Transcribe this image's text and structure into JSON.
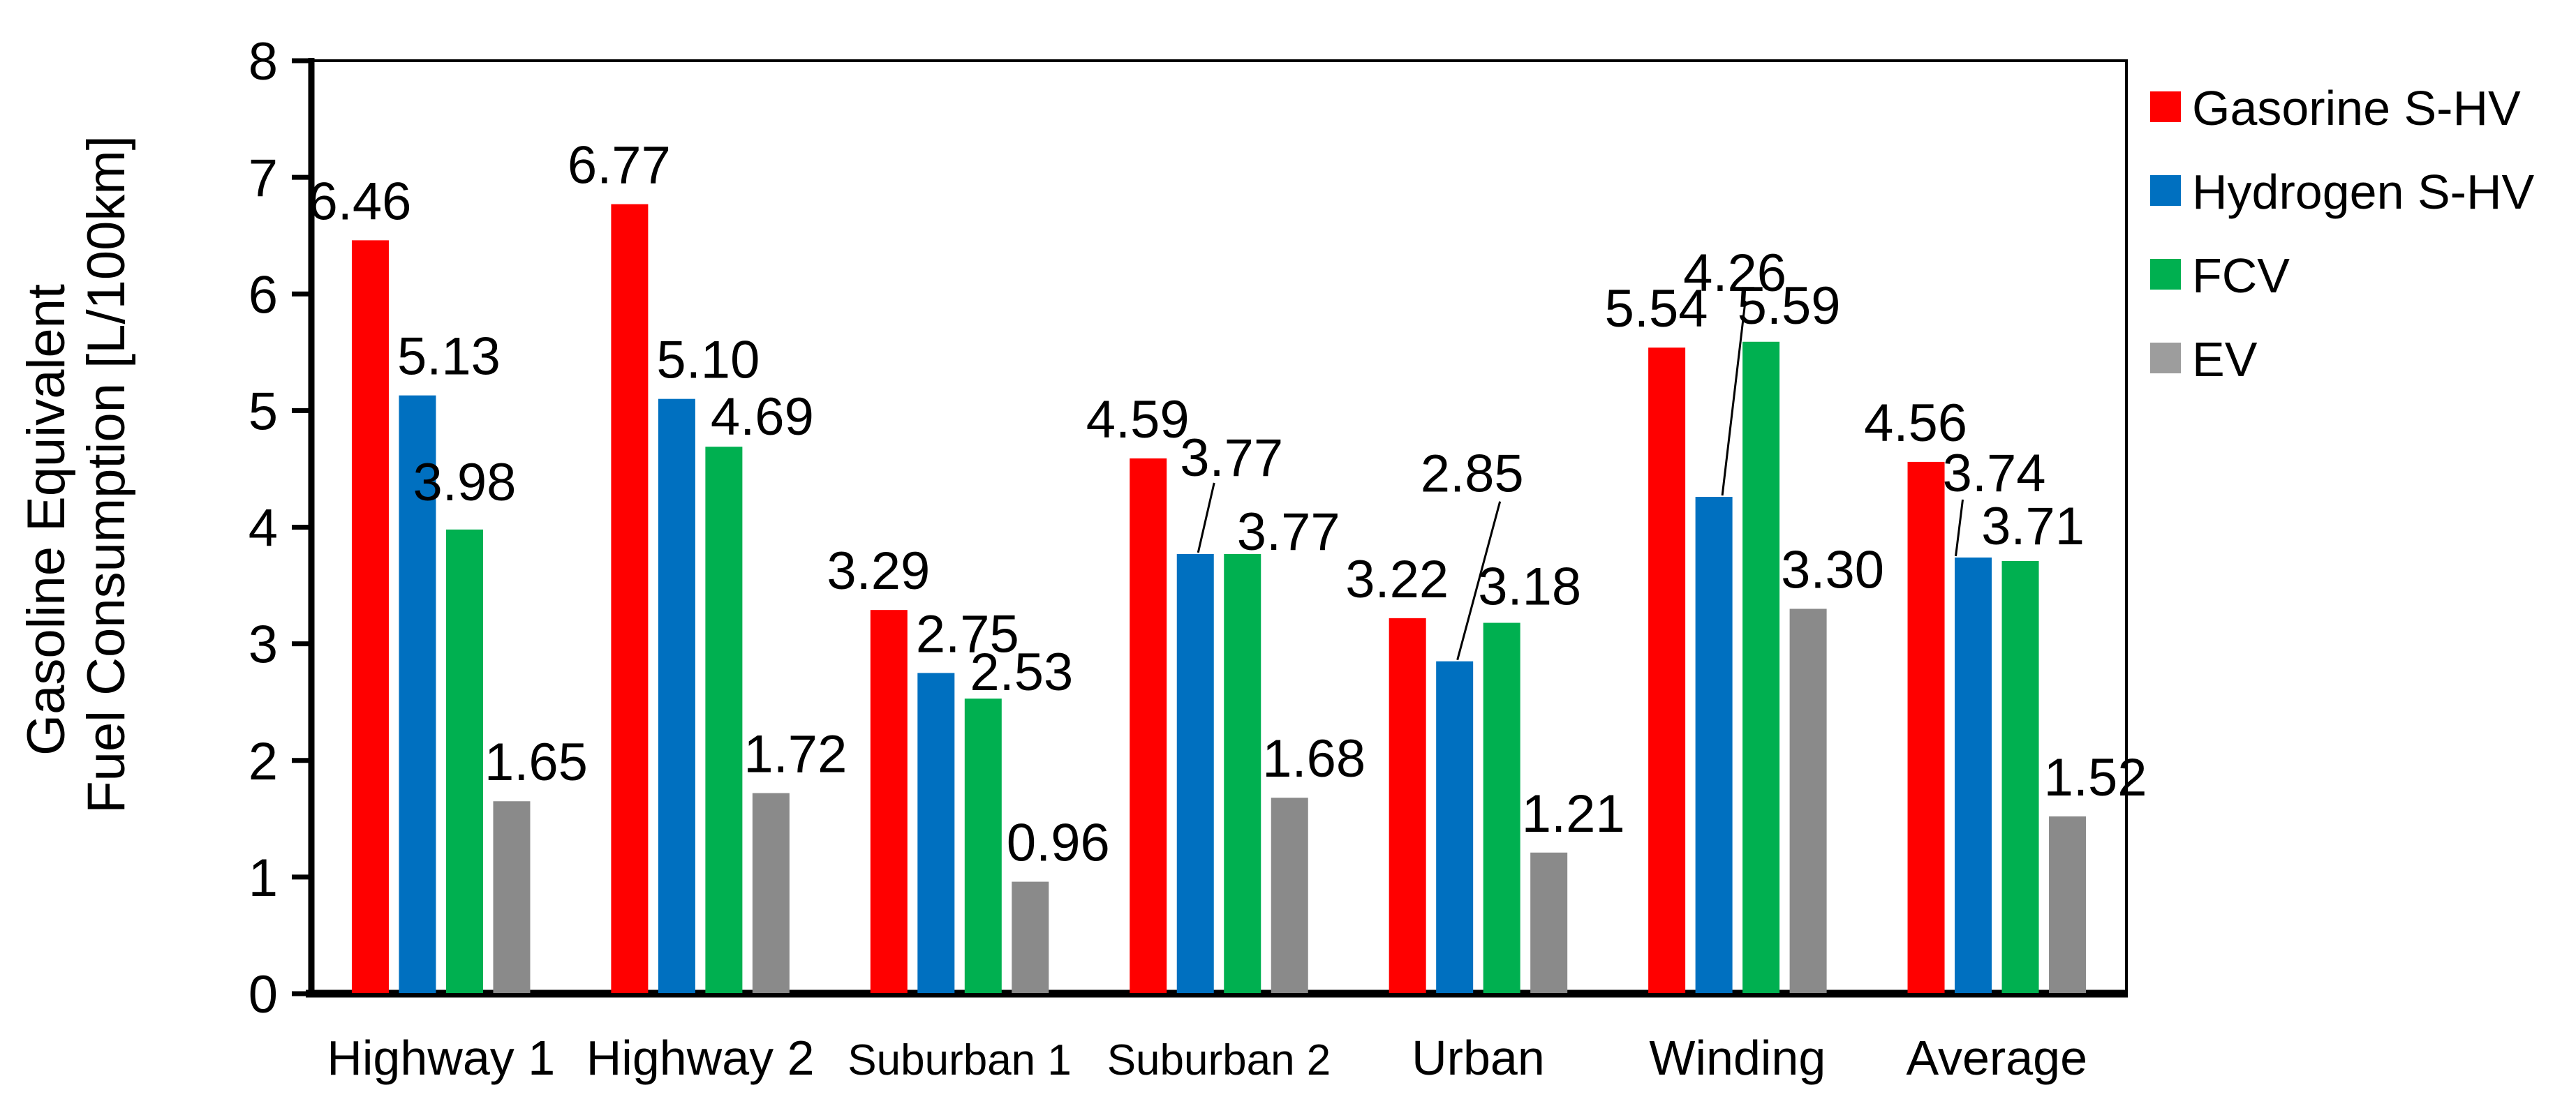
{
  "chart_data": {
    "type": "bar",
    "title": "",
    "ylabel_lines": [
      "Gasoline Equivalent",
      "Fuel Consumption [L/100km]"
    ],
    "ylim": [
      0,
      8
    ],
    "yticks": [
      0,
      1,
      2,
      3,
      4,
      5,
      6,
      7,
      8
    ],
    "grid": false,
    "legend_position": "right",
    "label_decimals": 2,
    "categories": [
      "Highway 1",
      "Highway 2",
      "Suburban 1",
      "Suburban 2",
      "Urban",
      "Winding",
      "Average"
    ],
    "series": [
      {
        "name": "Gasorine S-HV",
        "color": "#FF0000",
        "legend_color": "#FF0000",
        "values": [
          6.46,
          6.77,
          3.29,
          4.59,
          3.22,
          5.54,
          4.56
        ]
      },
      {
        "name": "Hydrogen S-HV",
        "color": "#0070C0",
        "legend_color": "#0070C0",
        "values": [
          5.13,
          5.1,
          2.75,
          3.77,
          2.85,
          4.26,
          3.74
        ]
      },
      {
        "name": "FCV",
        "color": "#00B050",
        "legend_color": "#00B050",
        "values": [
          3.98,
          4.69,
          2.53,
          3.77,
          3.18,
          5.59,
          3.71
        ]
      },
      {
        "name": "EV",
        "color": "#8A8A8A",
        "legend_color": "#9D9D9D",
        "values": [
          1.65,
          1.72,
          0.96,
          1.68,
          1.21,
          3.3,
          1.52
        ]
      }
    ],
    "annotations": {
      "label_offsets": [
        [
          [
            -15,
            30
          ],
          [
            45,
            30
          ],
          [
            0,
            42
          ],
          [
            35,
            30
          ]
        ],
        [
          [
            -15,
            30
          ],
          [
            45,
            30
          ],
          [
            55,
            17
          ],
          [
            35,
            30
          ]
        ],
        [
          [
            -15,
            30
          ],
          [
            45,
            30
          ],
          [
            55,
            12
          ],
          [
            40,
            30
          ]
        ],
        [
          [
            -15,
            30
          ],
          [
            52,
            112
          ],
          [
            66,
            6
          ],
          [
            35,
            30
          ]
        ],
        [
          [
            -15,
            30
          ],
          [
            25,
            243
          ],
          [
            40,
            26
          ],
          [
            35,
            30
          ]
        ],
        [
          [
            -15,
            30
          ],
          [
            30,
            295
          ],
          [
            40,
            26
          ],
          [
            35,
            30
          ]
        ],
        [
          [
            -15,
            30
          ],
          [
            30,
            95
          ],
          [
            18,
            24
          ],
          [
            40,
            30
          ]
        ]
      ],
      "callout_lines": [
        {
          "category": 3,
          "series": 1,
          "line": [
            4,
            -2,
            -25,
            10
          ]
        },
        {
          "category": 4,
          "series": 1,
          "line": [
            4,
            -2,
            40,
            14
          ]
        },
        {
          "category": 5,
          "series": 1,
          "line": [
            12,
            -2,
            15,
            14
          ]
        },
        {
          "category": 6,
          "series": 1,
          "line": [
            -25,
            -2,
            -45,
            12
          ]
        }
      ]
    }
  }
}
